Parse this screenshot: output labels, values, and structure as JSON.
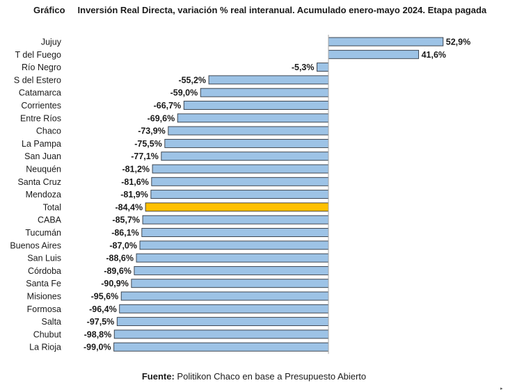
{
  "header": {
    "label": "Gráfico",
    "title": "Inversión Real Directa, variación % real interanual. Acumulado enero-mayo 2024. Etapa pagada"
  },
  "chart_data": {
    "type": "bar",
    "orientation": "horizontal",
    "categories": [
      "Jujuy",
      "T del Fuego",
      "Río Negro",
      "S del Estero",
      "Catamarca",
      "Corrientes",
      "Entre Ríos",
      "Chaco",
      "La Pampa",
      "San Juan",
      "Neuquén",
      "Santa Cruz",
      "Mendoza",
      "Total",
      "CABA",
      "Tucumán",
      "Buenos Aires",
      "San Luis",
      "Córdoba",
      "Santa Fe",
      "Misiones",
      "Formosa",
      "Salta",
      "Chubut",
      "La Rioja"
    ],
    "values": [
      52.9,
      41.6,
      -5.3,
      -55.2,
      -59.0,
      -66.7,
      -69.6,
      -73.9,
      -75.5,
      -77.1,
      -81.2,
      -81.6,
      -81.9,
      -84.4,
      -85.7,
      -86.1,
      -87.0,
      -88.6,
      -89.6,
      -90.9,
      -95.6,
      -96.4,
      -97.5,
      -98.8,
      -99.0
    ],
    "value_labels": [
      "52,9%",
      "41,6%",
      "-5,3%",
      "-55,2%",
      "-59,0%",
      "-66,7%",
      "-69,6%",
      "-73,9%",
      "-75,5%",
      "-77,1%",
      "-81,2%",
      "-81,6%",
      "-81,9%",
      "-84,4%",
      "-85,7%",
      "-86,1%",
      "-87,0%",
      "-88,6%",
      "-89,6%",
      "-90,9%",
      "-95,6%",
      "-96,4%",
      "-97,5%",
      "-98,8%",
      "-99,0%"
    ],
    "highlight_category": "Total",
    "xlim": [
      -100,
      60
    ],
    "grid": false,
    "colors": {
      "bar": "#9dc3e6",
      "highlight": "#ffc000",
      "bar_border": "#2f3640",
      "axis": "#a6a6a6",
      "text": "#1a1a1a"
    }
  },
  "footer": {
    "label": "Fuente:",
    "text": "Politikon Chaco en base a Presupuesto Abierto"
  }
}
